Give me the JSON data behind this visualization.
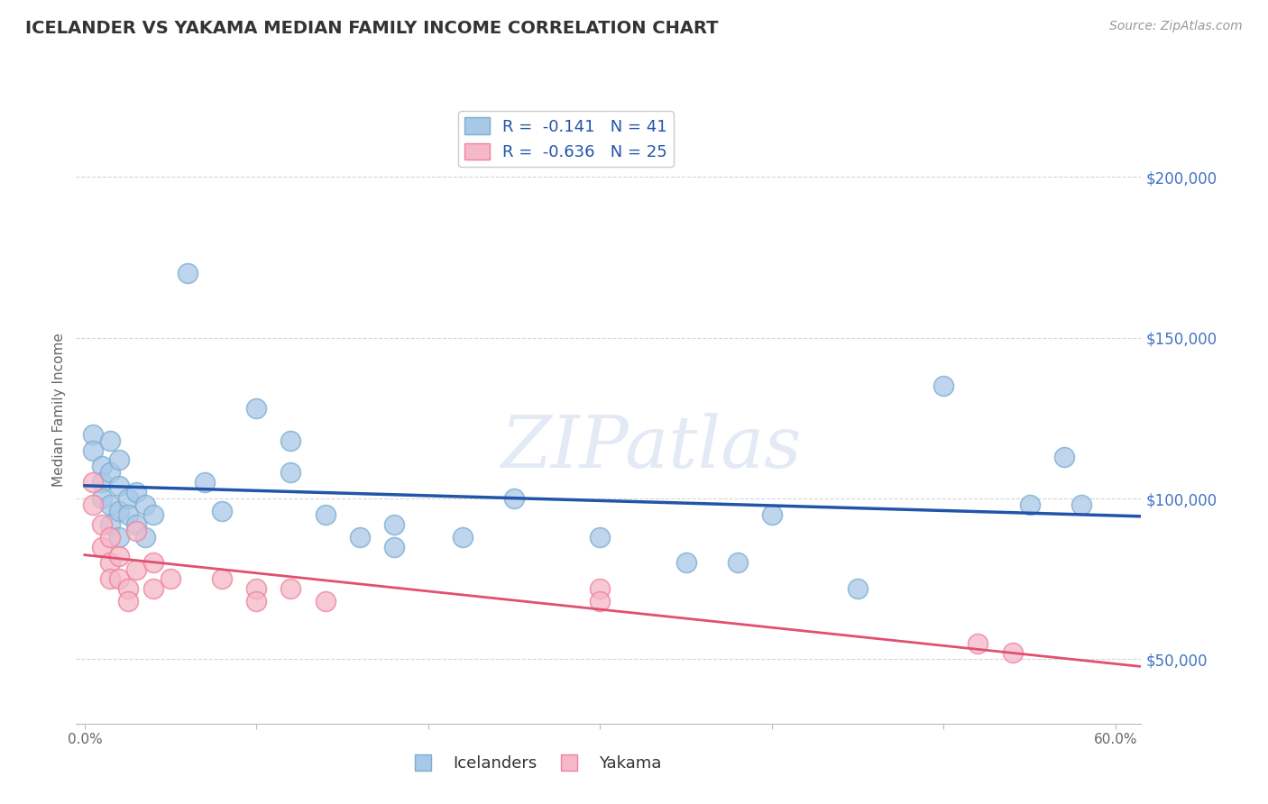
{
  "title": "ICELANDER VS YAKAMA MEDIAN FAMILY INCOME CORRELATION CHART",
  "source_text": "Source: ZipAtlas.com",
  "ylabel": "Median Family Income",
  "xlim": [
    -0.005,
    0.615
  ],
  "ylim": [
    30000,
    225000
  ],
  "yticks": [
    50000,
    100000,
    150000,
    200000
  ],
  "xticks": [
    0.0,
    0.1,
    0.2,
    0.3,
    0.4,
    0.5,
    0.6
  ],
  "xtick_labels_show": [
    "0.0%",
    "",
    "",
    "",
    "",
    "",
    "60.0%"
  ],
  "ytick_labels": [
    "$50,000",
    "$100,000",
    "$150,000",
    "$200,000"
  ],
  "blue_R": -0.141,
  "blue_N": 41,
  "pink_R": -0.636,
  "pink_N": 25,
  "blue_color": "#a8c8e8",
  "pink_color": "#f5b8c8",
  "blue_edge_color": "#7aadd0",
  "pink_edge_color": "#f080a0",
  "blue_line_color": "#2255aa",
  "pink_line_color": "#e05070",
  "blue_scatter": [
    [
      0.005,
      120000
    ],
    [
      0.005,
      115000
    ],
    [
      0.01,
      110000
    ],
    [
      0.01,
      105000
    ],
    [
      0.01,
      100000
    ],
    [
      0.015,
      118000
    ],
    [
      0.015,
      108000
    ],
    [
      0.015,
      98000
    ],
    [
      0.015,
      92000
    ],
    [
      0.02,
      112000
    ],
    [
      0.02,
      104000
    ],
    [
      0.02,
      96000
    ],
    [
      0.02,
      88000
    ],
    [
      0.025,
      100000
    ],
    [
      0.025,
      95000
    ],
    [
      0.03,
      102000
    ],
    [
      0.03,
      92000
    ],
    [
      0.035,
      98000
    ],
    [
      0.035,
      88000
    ],
    [
      0.04,
      95000
    ],
    [
      0.06,
      170000
    ],
    [
      0.07,
      105000
    ],
    [
      0.08,
      96000
    ],
    [
      0.1,
      128000
    ],
    [
      0.12,
      118000
    ],
    [
      0.12,
      108000
    ],
    [
      0.14,
      95000
    ],
    [
      0.16,
      88000
    ],
    [
      0.18,
      92000
    ],
    [
      0.18,
      85000
    ],
    [
      0.22,
      88000
    ],
    [
      0.25,
      100000
    ],
    [
      0.3,
      88000
    ],
    [
      0.35,
      80000
    ],
    [
      0.38,
      80000
    ],
    [
      0.4,
      95000
    ],
    [
      0.45,
      72000
    ],
    [
      0.5,
      135000
    ],
    [
      0.55,
      98000
    ],
    [
      0.57,
      113000
    ],
    [
      0.58,
      98000
    ]
  ],
  "pink_scatter": [
    [
      0.005,
      105000
    ],
    [
      0.005,
      98000
    ],
    [
      0.01,
      92000
    ],
    [
      0.01,
      85000
    ],
    [
      0.015,
      88000
    ],
    [
      0.015,
      80000
    ],
    [
      0.015,
      75000
    ],
    [
      0.02,
      82000
    ],
    [
      0.02,
      75000
    ],
    [
      0.025,
      72000
    ],
    [
      0.025,
      68000
    ],
    [
      0.03,
      90000
    ],
    [
      0.03,
      78000
    ],
    [
      0.04,
      80000
    ],
    [
      0.04,
      72000
    ],
    [
      0.05,
      75000
    ],
    [
      0.08,
      75000
    ],
    [
      0.1,
      72000
    ],
    [
      0.1,
      68000
    ],
    [
      0.12,
      72000
    ],
    [
      0.14,
      68000
    ],
    [
      0.3,
      72000
    ],
    [
      0.3,
      68000
    ],
    [
      0.52,
      55000
    ],
    [
      0.54,
      52000
    ]
  ],
  "watermark_text": "ZIPatlas",
  "background_color": "#ffffff",
  "grid_color": "#cccccc",
  "title_color": "#333333",
  "axis_label_color": "#666666",
  "ytick_color": "#4472c4",
  "xtick_color": "#666666"
}
